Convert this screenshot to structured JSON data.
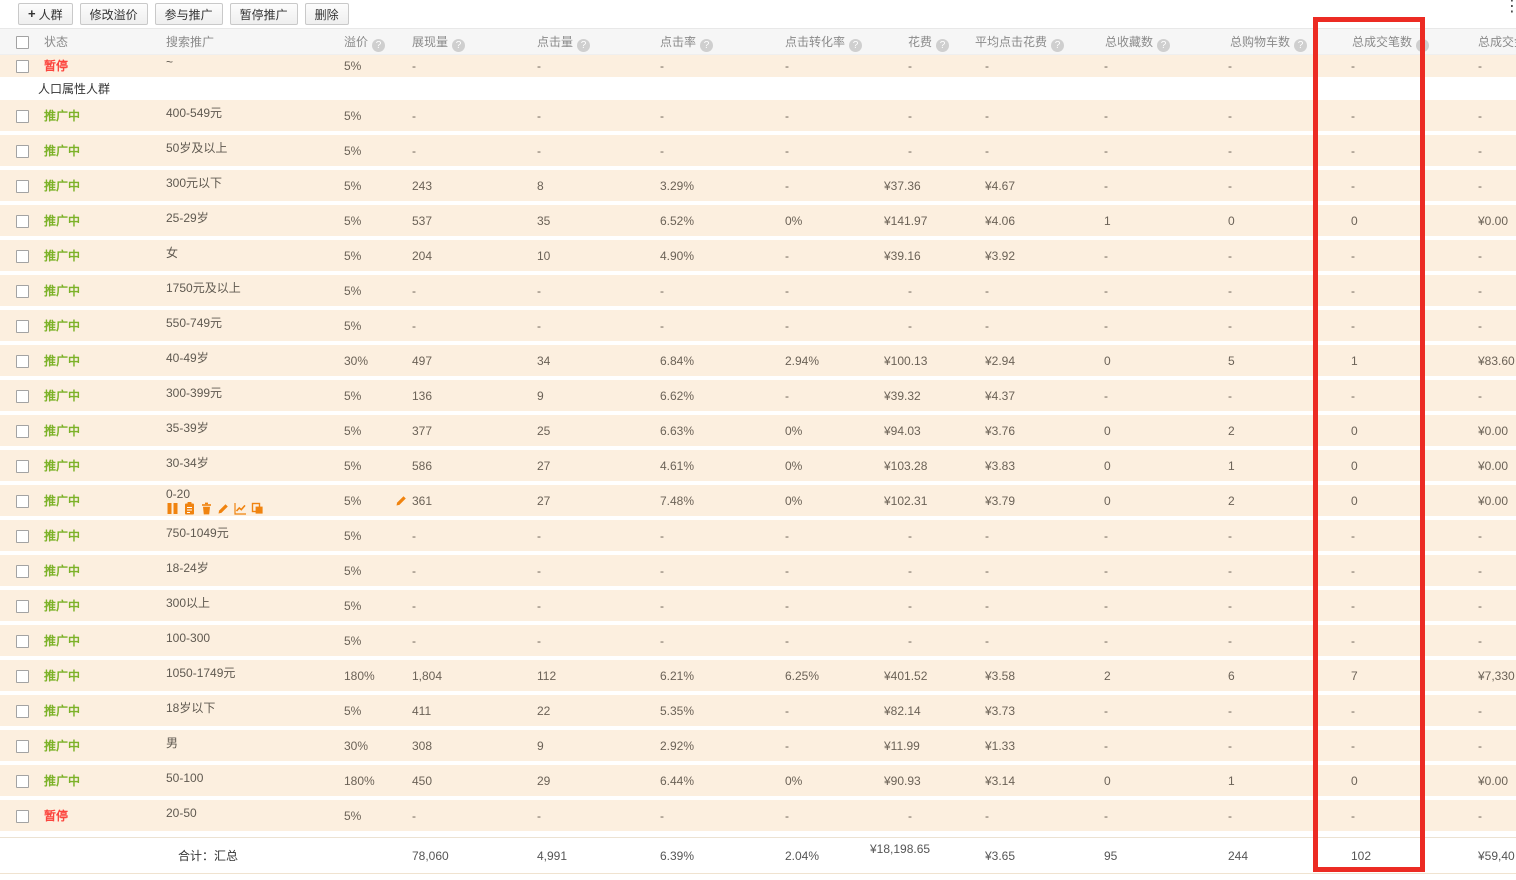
{
  "ui": {
    "help_glyph": "?",
    "more_glyph": "⋮",
    "plus_glyph": "+"
  },
  "colors": {
    "status_active": "#7cb228",
    "status_paused": "#fb453e",
    "action_orange": "#f0830f",
    "highlight_red": "#ec2b23",
    "row_bg": "#fcefdf"
  },
  "toolbar": {
    "buttons": [
      {
        "label": "人群",
        "has_plus": true
      },
      {
        "label": "修改溢价"
      },
      {
        "label": "参与推广"
      },
      {
        "label": "暂停推广"
      },
      {
        "label": "删除"
      }
    ]
  },
  "columns": [
    {
      "key": "status",
      "label": "状态",
      "help": false
    },
    {
      "key": "name",
      "label": "搜索推广",
      "help": false
    },
    {
      "key": "premium",
      "label": "溢价",
      "help": true
    },
    {
      "key": "impressions",
      "label": "展现量",
      "help": true
    },
    {
      "key": "clicks",
      "label": "点击量",
      "help": true
    },
    {
      "key": "ctr",
      "label": "点击率",
      "help": true
    },
    {
      "key": "cvr",
      "label": "点击转化率",
      "help": true
    },
    {
      "key": "cost",
      "label": "花费",
      "help": true
    },
    {
      "key": "avg_cost",
      "label": "平均点击花费",
      "help": true
    },
    {
      "key": "favorites",
      "label": "总收藏数",
      "help": true
    },
    {
      "key": "carts",
      "label": "总购物车数",
      "help": true
    },
    {
      "key": "orders",
      "label": "总成交笔数",
      "help": true
    },
    {
      "key": "revenue",
      "label": "总成交金额",
      "help": false
    }
  ],
  "highlight": {
    "column": "总成交笔数",
    "color": "#ec2b23"
  },
  "rows": [
    {
      "type": "data",
      "partial": true,
      "status": "暂停",
      "status_color": "red",
      "name": "~",
      "premium": "5%",
      "impressions": "-",
      "clicks": "-",
      "ctr": "-",
      "cvr": "-",
      "cost": "-",
      "avg_cost": "-",
      "favorites": "-",
      "carts": "-",
      "orders": "-",
      "revenue": "-"
    },
    {
      "type": "section",
      "label": "人口属性人群"
    },
    {
      "type": "data",
      "status": "推广中",
      "status_color": "green",
      "name": "400-549元",
      "premium": "5%",
      "impressions": "-",
      "clicks": "-",
      "ctr": "-",
      "cvr": "-",
      "cost": "-",
      "avg_cost": "-",
      "favorites": "-",
      "carts": "-",
      "orders": "-",
      "revenue": "-"
    },
    {
      "type": "data",
      "status": "推广中",
      "status_color": "green",
      "name": "50岁及以上",
      "premium": "5%",
      "impressions": "-",
      "clicks": "-",
      "ctr": "-",
      "cvr": "-",
      "cost": "-",
      "avg_cost": "-",
      "favorites": "-",
      "carts": "-",
      "orders": "-",
      "revenue": "-"
    },
    {
      "type": "data",
      "status": "推广中",
      "status_color": "green",
      "name": "300元以下",
      "premium": "5%",
      "impressions": "243",
      "clicks": "8",
      "ctr": "3.29%",
      "cvr": "-",
      "cost": "¥37.36",
      "avg_cost": "¥4.67",
      "favorites": "-",
      "carts": "-",
      "orders": "-",
      "revenue": "-"
    },
    {
      "type": "data",
      "status": "推广中",
      "status_color": "green",
      "name": "25-29岁",
      "premium": "5%",
      "impressions": "537",
      "clicks": "35",
      "ctr": "6.52%",
      "cvr": "0%",
      "cost": "¥141.97",
      "avg_cost": "¥4.06",
      "favorites": "1",
      "carts": "0",
      "orders": "0",
      "revenue": "¥0.00"
    },
    {
      "type": "data",
      "status": "推广中",
      "status_color": "green",
      "name": "女",
      "premium": "5%",
      "impressions": "204",
      "clicks": "10",
      "ctr": "4.90%",
      "cvr": "-",
      "cost": "¥39.16",
      "avg_cost": "¥3.92",
      "favorites": "-",
      "carts": "-",
      "orders": "-",
      "revenue": "-"
    },
    {
      "type": "data",
      "status": "推广中",
      "status_color": "green",
      "name": "1750元及以上",
      "premium": "5%",
      "impressions": "-",
      "clicks": "-",
      "ctr": "-",
      "cvr": "-",
      "cost": "-",
      "avg_cost": "-",
      "favorites": "-",
      "carts": "-",
      "orders": "-",
      "revenue": "-"
    },
    {
      "type": "data",
      "status": "推广中",
      "status_color": "green",
      "name": "550-749元",
      "premium": "5%",
      "impressions": "-",
      "clicks": "-",
      "ctr": "-",
      "cvr": "-",
      "cost": "-",
      "avg_cost": "-",
      "favorites": "-",
      "carts": "-",
      "orders": "-",
      "revenue": "-"
    },
    {
      "type": "data",
      "status": "推广中",
      "status_color": "green",
      "name": "40-49岁",
      "premium": "30%",
      "impressions": "497",
      "clicks": "34",
      "ctr": "6.84%",
      "cvr": "2.94%",
      "cost": "¥100.13",
      "avg_cost": "¥2.94",
      "favorites": "0",
      "carts": "5",
      "orders": "1",
      "revenue": "¥83.60"
    },
    {
      "type": "data",
      "status": "推广中",
      "status_color": "green",
      "name": "300-399元",
      "premium": "5%",
      "impressions": "136",
      "clicks": "9",
      "ctr": "6.62%",
      "cvr": "-",
      "cost": "¥39.32",
      "avg_cost": "¥4.37",
      "favorites": "-",
      "carts": "-",
      "orders": "-",
      "revenue": "-"
    },
    {
      "type": "data",
      "status": "推广中",
      "status_color": "green",
      "name": "35-39岁",
      "premium": "5%",
      "impressions": "377",
      "clicks": "25",
      "ctr": "6.63%",
      "cvr": "0%",
      "cost": "¥94.03",
      "avg_cost": "¥3.76",
      "favorites": "0",
      "carts": "2",
      "orders": "0",
      "revenue": "¥0.00"
    },
    {
      "type": "data",
      "status": "推广中",
      "status_color": "green",
      "name": "30-34岁",
      "premium": "5%",
      "impressions": "586",
      "clicks": "27",
      "ctr": "4.61%",
      "cvr": "0%",
      "cost": "¥103.28",
      "avg_cost": "¥3.83",
      "favorites": "0",
      "carts": "1",
      "orders": "0",
      "revenue": "¥0.00"
    },
    {
      "type": "data",
      "status": "推广中",
      "status_color": "green",
      "name": "0-20",
      "has_actions": true,
      "action_icons": [
        "pause",
        "clipboard",
        "trash",
        "pencil",
        "chart",
        "copy"
      ],
      "has_edit_pencil": true,
      "premium": "5%",
      "impressions": "361",
      "clicks": "27",
      "ctr": "7.48%",
      "cvr": "0%",
      "cost": "¥102.31",
      "avg_cost": "¥3.79",
      "favorites": "0",
      "carts": "2",
      "orders": "0",
      "revenue": "¥0.00"
    },
    {
      "type": "data",
      "status": "推广中",
      "status_color": "green",
      "name": "750-1049元",
      "premium": "5%",
      "impressions": "-",
      "clicks": "-",
      "ctr": "-",
      "cvr": "-",
      "cost": "-",
      "avg_cost": "-",
      "favorites": "-",
      "carts": "-",
      "orders": "-",
      "revenue": "-"
    },
    {
      "type": "data",
      "status": "推广中",
      "status_color": "green",
      "name": "18-24岁",
      "premium": "5%",
      "impressions": "-",
      "clicks": "-",
      "ctr": "-",
      "cvr": "-",
      "cost": "-",
      "avg_cost": "-",
      "favorites": "-",
      "carts": "-",
      "orders": "-",
      "revenue": "-"
    },
    {
      "type": "data",
      "status": "推广中",
      "status_color": "green",
      "name": "300以上",
      "premium": "5%",
      "impressions": "-",
      "clicks": "-",
      "ctr": "-",
      "cvr": "-",
      "cost": "-",
      "avg_cost": "-",
      "favorites": "-",
      "carts": "-",
      "orders": "-",
      "revenue": "-"
    },
    {
      "type": "data",
      "status": "推广中",
      "status_color": "green",
      "name": "100-300",
      "premium": "5%",
      "impressions": "-",
      "clicks": "-",
      "ctr": "-",
      "cvr": "-",
      "cost": "-",
      "avg_cost": "-",
      "favorites": "-",
      "carts": "-",
      "orders": "-",
      "revenue": "-"
    },
    {
      "type": "data",
      "status": "推广中",
      "status_color": "green",
      "name": "1050-1749元",
      "premium": "180%",
      "impressions": "1,804",
      "clicks": "112",
      "ctr": "6.21%",
      "cvr": "6.25%",
      "cost": "¥401.52",
      "avg_cost": "¥3.58",
      "favorites": "2",
      "carts": "6",
      "orders": "7",
      "revenue": "¥7,330"
    },
    {
      "type": "data",
      "status": "推广中",
      "status_color": "green",
      "name": "18岁以下",
      "premium": "5%",
      "impressions": "411",
      "clicks": "22",
      "ctr": "5.35%",
      "cvr": "-",
      "cost": "¥82.14",
      "avg_cost": "¥3.73",
      "favorites": "-",
      "carts": "-",
      "orders": "-",
      "revenue": "-"
    },
    {
      "type": "data",
      "status": "推广中",
      "status_color": "green",
      "name": "男",
      "premium": "30%",
      "impressions": "308",
      "clicks": "9",
      "ctr": "2.92%",
      "cvr": "-",
      "cost": "¥11.99",
      "avg_cost": "¥1.33",
      "favorites": "-",
      "carts": "-",
      "orders": "-",
      "revenue": "-"
    },
    {
      "type": "data",
      "status": "推广中",
      "status_color": "green",
      "name": "50-100",
      "premium": "180%",
      "impressions": "450",
      "clicks": "29",
      "ctr": "6.44%",
      "cvr": "0%",
      "cost": "¥90.93",
      "avg_cost": "¥3.14",
      "favorites": "0",
      "carts": "1",
      "orders": "0",
      "revenue": "¥0.00"
    },
    {
      "type": "data",
      "status": "暂停",
      "status_color": "red",
      "name": "20-50",
      "premium": "5%",
      "impressions": "-",
      "clicks": "-",
      "ctr": "-",
      "cvr": "-",
      "cost": "-",
      "avg_cost": "-",
      "favorites": "-",
      "carts": "-",
      "orders": "-",
      "revenue": "-"
    }
  ],
  "total": {
    "label": "合计：汇总",
    "impressions": "78,060",
    "clicks": "4,991",
    "ctr": "6.39%",
    "cvr": "2.04%",
    "cost": "¥18,198.65",
    "avg_cost": "¥3.65",
    "favorites": "95",
    "carts": "244",
    "orders": "102",
    "revenue": "¥59,40"
  }
}
